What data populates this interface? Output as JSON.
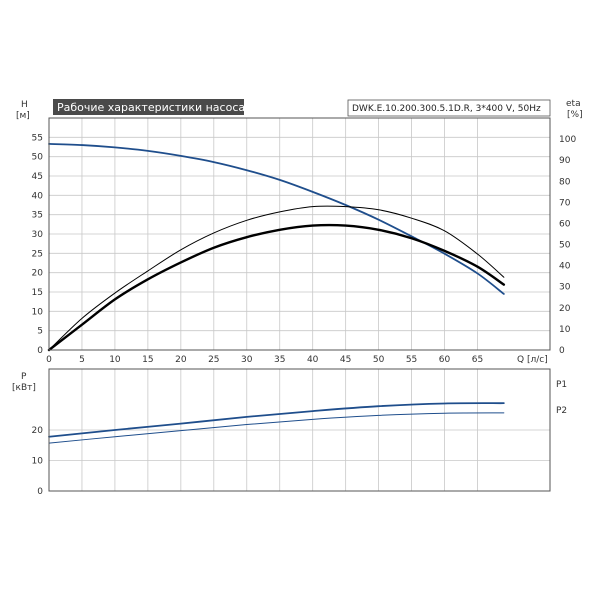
{
  "chart_data": [
    {
      "type": "line",
      "title": "Рабочие характеристики насоса",
      "subtitle": "DWK.E.10.200.300.5.1D.R, 3*400 V, 50Hz",
      "xlabel": "Q [л/с]",
      "ylabel_left": "H",
      "ylabel_left_unit": "[м]",
      "ylabel_right": "eta",
      "ylabel_right_unit": "[%]",
      "xlim": [
        0,
        76
      ],
      "ylim": [
        0,
        60
      ],
      "ylim_right": [
        0,
        110
      ],
      "x_ticks": [
        0,
        5,
        10,
        15,
        20,
        25,
        30,
        35,
        40,
        45,
        50,
        55,
        60,
        65
      ],
      "y_ticks": [
        0,
        5,
        10,
        15,
        20,
        25,
        30,
        35,
        40,
        45,
        50,
        55
      ],
      "y_ticks_right": [
        0,
        10,
        20,
        30,
        40,
        50,
        60,
        70,
        80,
        90,
        100
      ],
      "grid": true,
      "series": [
        {
          "axis": "left",
          "color": "#1f4e8c",
          "x": [
            0,
            5,
            10,
            15,
            20,
            25,
            30,
            35,
            40,
            45,
            50,
            55,
            60,
            65,
            69
          ],
          "values": [
            53.3,
            53.0,
            52.4,
            51.5,
            50.2,
            48.6,
            46.5,
            44.0,
            40.9,
            37.5,
            33.7,
            29.4,
            24.9,
            19.8,
            14.5
          ]
        },
        {
          "axis": "right",
          "color": "#000000",
          "weight": "thin",
          "x": [
            0,
            5,
            10,
            15,
            20,
            25,
            30,
            35,
            40,
            45,
            50,
            55,
            60,
            65,
            69
          ],
          "values": [
            0,
            15,
            27,
            37.5,
            47.5,
            55.5,
            61.5,
            65.5,
            68,
            68,
            66.5,
            62.5,
            56.5,
            45.5,
            34.5
          ]
        },
        {
          "axis": "right",
          "color": "#000000",
          "weight": "bold",
          "x": [
            0,
            5,
            10,
            15,
            20,
            25,
            30,
            35,
            40,
            45,
            50,
            55,
            60,
            65,
            69
          ],
          "values": [
            0,
            12,
            24,
            33.5,
            41.5,
            48.5,
            53.5,
            57,
            59,
            59,
            57,
            53,
            47,
            39.5,
            31
          ]
        }
      ]
    },
    {
      "type": "line",
      "ylabel": "P",
      "ylabel_unit": "[кВт]",
      "xlim": [
        0,
        76
      ],
      "ylim": [
        0,
        40
      ],
      "y_ticks": [
        0,
        10,
        20
      ],
      "grid": true,
      "series": [
        {
          "name": "P1",
          "color": "#1f4e8c",
          "x": [
            0,
            10,
            20,
            30,
            40,
            50,
            60,
            69
          ],
          "values": [
            17.8,
            20.0,
            22.1,
            24.3,
            26.2,
            27.8,
            28.7,
            28.8
          ]
        },
        {
          "name": "P2",
          "color": "#1f4e8c",
          "x": [
            0,
            10,
            20,
            30,
            40,
            50,
            60,
            69
          ],
          "values": [
            15.7,
            17.8,
            19.8,
            21.8,
            23.5,
            24.8,
            25.5,
            25.6
          ]
        }
      ]
    }
  ]
}
